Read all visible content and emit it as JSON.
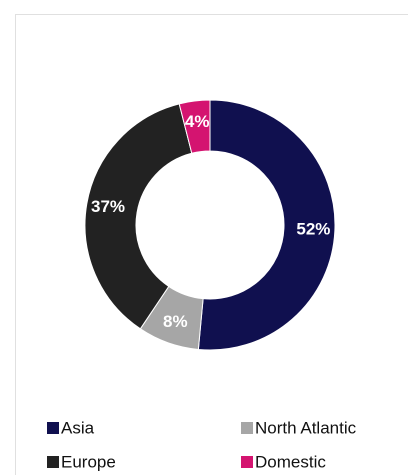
{
  "chart_data": {
    "type": "donut",
    "categories": [
      "Asia",
      "North Atlantic",
      "Europe",
      "Domestic"
    ],
    "values": [
      52,
      8,
      37,
      4
    ],
    "value_labels": [
      "52%",
      "8%",
      "37%",
      "4%"
    ],
    "colors": [
      "#10104f",
      "#a6a6a6",
      "#222222",
      "#d41470"
    ]
  }
}
